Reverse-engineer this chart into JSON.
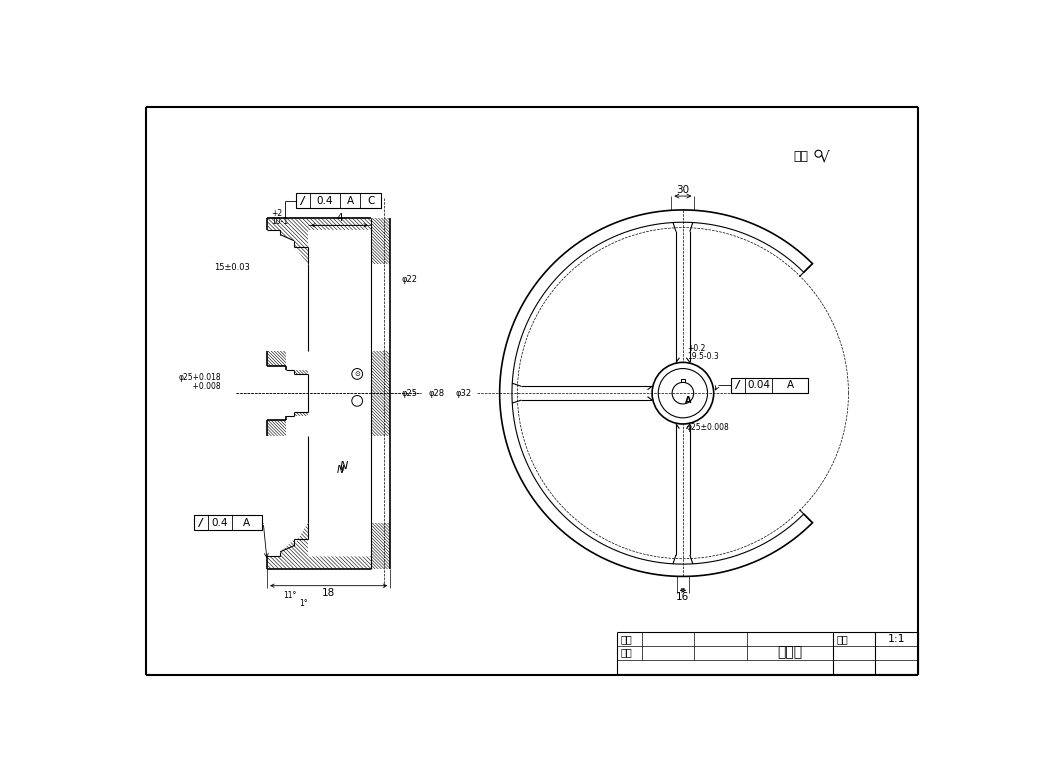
{
  "title": "大带轮",
  "scale": "1:1",
  "drawer_label": "制图",
  "reviewer_label": "审核",
  "bg_color": "#ffffff",
  "line_color": "#000000",
  "tol1_text": "0.4",
  "tol1_ref1": "A",
  "tol1_ref2": "C",
  "tol2_text": "0.4",
  "tol2_ref1": "A",
  "tol3_text": "0.04",
  "tol3_ref1": "A",
  "dim_30": "30",
  "dim_16": "16",
  "dim_4": "4",
  "dim_18": "18",
  "note_top_right": "其余",
  "left_dim1": "15±0.03",
  "left_dim2": "4",
  "left_dim3": "18",
  "hub_tol": "Ø25+0.018\n       +0.008",
  "bore_tol": "Ø25±0.008"
}
